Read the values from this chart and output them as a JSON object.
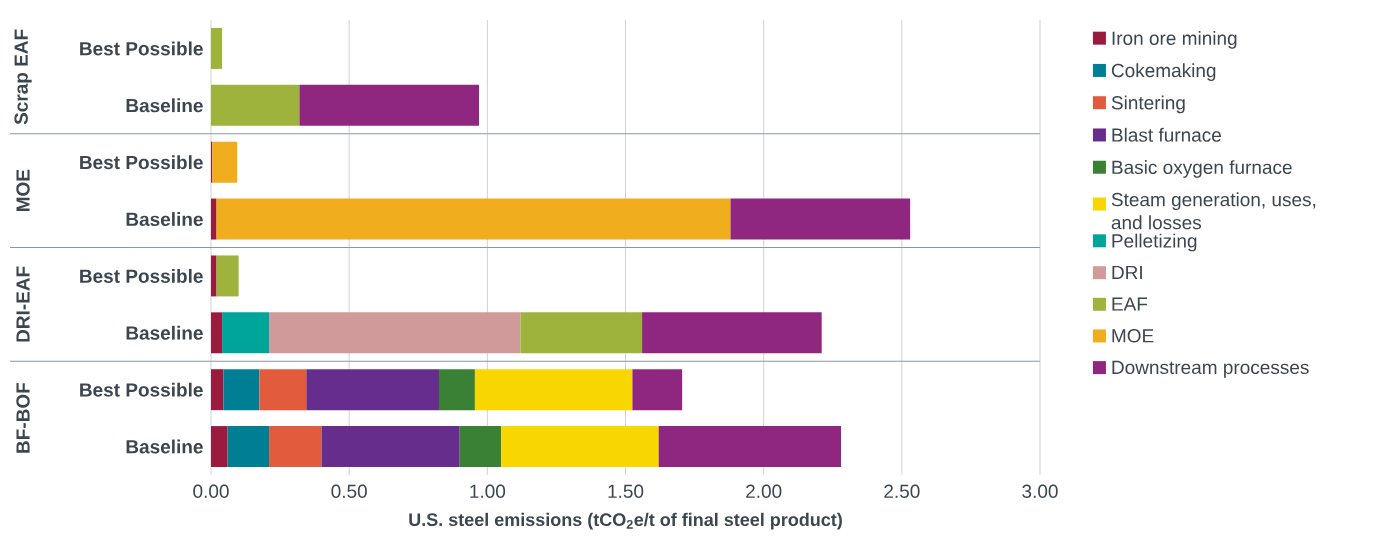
{
  "chart_data": {
    "type": "bar",
    "orientation": "horizontal",
    "stacked": true,
    "categories": [
      "Best Possible",
      "Baseline",
      "Best Possible",
      "Baseline",
      "Best Possible",
      "Baseline",
      "Best Possible",
      "Baseline"
    ],
    "series": [
      {
        "name": "Iron ore mining",
        "color": "#9b1b3e",
        "values": [
          null,
          null,
          0.005,
          0.02,
          0.02,
          0.04,
          0.045,
          0.06
        ]
      },
      {
        "name": "Cokemaking",
        "color": "#007f94",
        "values": [
          null,
          null,
          null,
          null,
          null,
          null,
          0.13,
          0.15
        ]
      },
      {
        "name": "Sintering",
        "color": "#e35b3d",
        "values": [
          null,
          null,
          null,
          null,
          null,
          null,
          0.17,
          0.19
        ]
      },
      {
        "name": "Blast furnace",
        "color": "#662d8c",
        "values": [
          null,
          null,
          null,
          null,
          null,
          null,
          0.48,
          0.5
        ]
      },
      {
        "name": "Basic oxygen furnace",
        "color": "#3a8136",
        "values": [
          null,
          null,
          null,
          null,
          null,
          null,
          0.13,
          0.15
        ]
      },
      {
        "name": "Steam generation, uses, and losses",
        "color": "#f8d600",
        "values": [
          null,
          null,
          null,
          null,
          null,
          null,
          0.57,
          0.57
        ]
      },
      {
        "name": "Pelletizing",
        "color": "#00a59a",
        "values": [
          null,
          null,
          null,
          null,
          null,
          0.17,
          null,
          null
        ]
      },
      {
        "name": "DRI",
        "color": "#d09a9a",
        "values": [
          null,
          null,
          null,
          null,
          null,
          0.91,
          null,
          null
        ]
      },
      {
        "name": "EAF",
        "color": "#9db33b",
        "values": [
          0.04,
          0.32,
          null,
          null,
          0.08,
          0.44,
          null,
          null
        ]
      },
      {
        "name": "MOE",
        "color": "#f0ad1d",
        "values": [
          null,
          null,
          0.09,
          1.86,
          null,
          null,
          null,
          null
        ]
      },
      {
        "name": "Downstream processes",
        "color": "#8f2781",
        "values": [
          null,
          0.65,
          null,
          0.65,
          null,
          0.65,
          0.18,
          0.66
        ]
      }
    ],
    "xlabel": "U.S. steel emissions (tCO$_{2}$e/t of final steel product)",
    "xlim": [
      0,
      3
    ],
    "xticks": [
      {
        "value": 0,
        "label": "0.00"
      },
      {
        "value": 0.5,
        "label": "0.50"
      },
      {
        "value": 1,
        "label": "1.00"
      },
      {
        "value": 1.5,
        "label": "1.50"
      },
      {
        "value": 2,
        "label": "2.00"
      },
      {
        "value": 2.5,
        "label": "2.50"
      },
      {
        "value": 3,
        "label": "3.00"
      }
    ],
    "grid": "x",
    "legend": "right",
    "annotations": [
      "Scrap EAF",
      "MOE",
      "DRI-EAF",
      "BF-BOF"
    ]
  }
}
